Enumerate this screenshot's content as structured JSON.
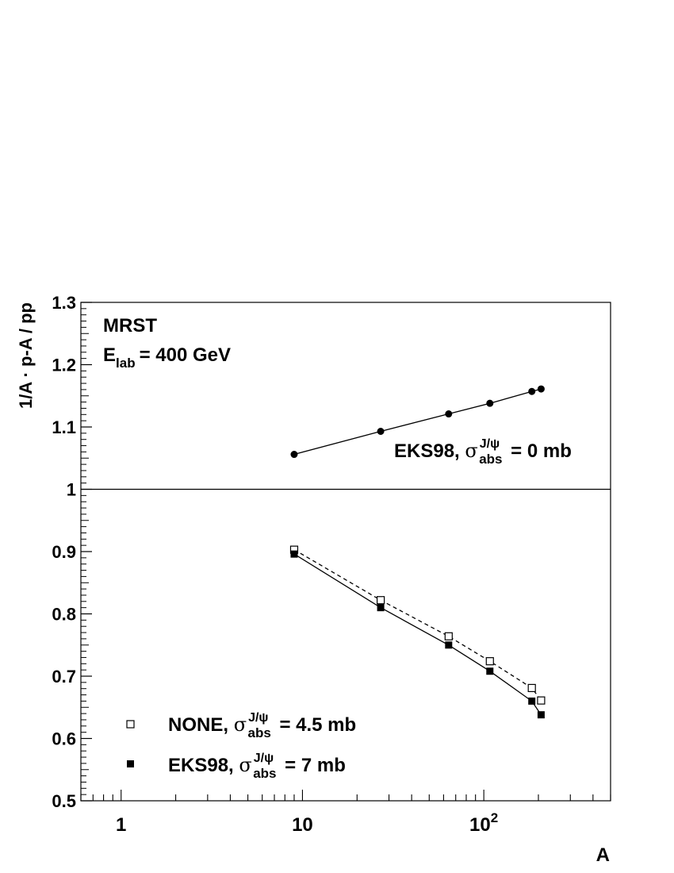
{
  "chart_data": {
    "type": "scatter",
    "xlabel": "A",
    "ylabel": "1/A · p-A / pp",
    "x_scale": "log",
    "xlim": [
      0.6,
      500
    ],
    "ylim": [
      0.5,
      1.3
    ],
    "reference_line_y": 1,
    "grid": false,
    "x_ticks": [
      {
        "value": 1,
        "label": "1"
      },
      {
        "value": 10,
        "label": "10"
      },
      {
        "value": 100,
        "label": "10",
        "sup": "2"
      }
    ],
    "y_ticks": [
      "0.5",
      "0.6",
      "0.7",
      "0.8",
      "0.9",
      "1",
      "1.1",
      "1.2",
      "1.3"
    ],
    "annotations": {
      "pdf": "MRST",
      "energy_prefix": "E",
      "energy_sub": "lab",
      "energy_value": "= 400 GeV"
    },
    "series": [
      {
        "name": "EKS98, σ_abs^J/ψ = 0 mb",
        "label": {
          "pre": "EKS98, ",
          "sym": "σ",
          "sup": "J/ψ",
          "sub": "abs",
          "post": " = 0 mb"
        },
        "marker": "filled-circle",
        "line": "solid",
        "x": [
          9,
          27,
          64,
          108,
          184,
          207
        ],
        "y": [
          1.056,
          1.093,
          1.121,
          1.138,
          1.157,
          1.161
        ]
      },
      {
        "name": "NONE, σ_abs^J/ψ = 4.5 mb",
        "label": {
          "pre": "NONE, ",
          "sym": "σ",
          "sup": "J/ψ",
          "sub": "abs",
          "post": " = 4.5 mb"
        },
        "marker": "open-square",
        "line": "dashed",
        "x": [
          9,
          27,
          64,
          108,
          184,
          207
        ],
        "y": [
          0.903,
          0.822,
          0.764,
          0.724,
          0.681,
          0.661
        ]
      },
      {
        "name": "EKS98, σ_abs^J/ψ = 7 mb",
        "label": {
          "pre": "EKS98, ",
          "sym": "σ",
          "sup": "J/ψ",
          "sub": "abs",
          "post": " = 7 mb"
        },
        "marker": "filled-square",
        "line": "solid",
        "x": [
          9,
          27,
          64,
          108,
          184,
          207
        ],
        "y": [
          0.896,
          0.81,
          0.75,
          0.708,
          0.66,
          0.638
        ]
      }
    ]
  }
}
